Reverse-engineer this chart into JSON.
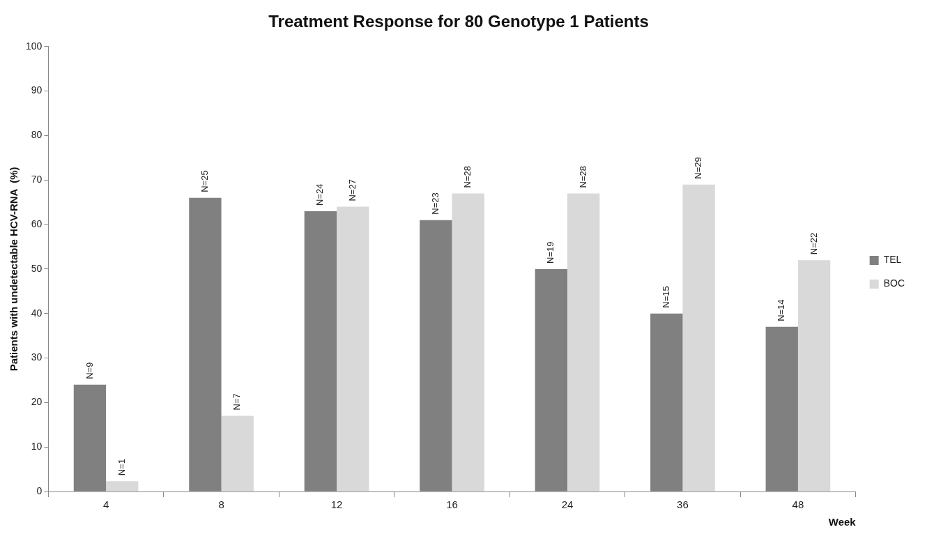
{
  "chart_data": {
    "type": "bar",
    "title": "Treatment Response for 80 Genotype 1 Patients",
    "xlabel": "Week",
    "ylabel": "Patients with undetectable HCV-RNA  (%)",
    "categories": [
      "4",
      "8",
      "12",
      "16",
      "24",
      "36",
      "48"
    ],
    "series": [
      {
        "name": "TEL",
        "color": "#808080",
        "values": [
          24,
          66,
          63,
          61,
          50,
          40,
          37
        ]
      },
      {
        "name": "BOC",
        "color": "#d9d9d9",
        "values": [
          2.3,
          17,
          64,
          67,
          67,
          69,
          52
        ]
      }
    ],
    "annotations": [
      {
        "text": "N=9",
        "x": "4",
        "y": 24
      },
      {
        "text": "N=1",
        "x": "4",
        "y": 2.3
      },
      {
        "text": "N=25",
        "x": "8",
        "y": 66
      },
      {
        "text": "N=7",
        "x": "8",
        "y": 17
      },
      {
        "text": "N=24",
        "x": "12",
        "y": 63
      },
      {
        "text": "N=27",
        "x": "12",
        "y": 64
      },
      {
        "text": "N=23",
        "x": "16",
        "y": 61
      },
      {
        "text": "N=28",
        "x": "16",
        "y": 67
      },
      {
        "text": "N=19",
        "x": "24",
        "y": 50
      },
      {
        "text": "N=28",
        "x": "24",
        "y": 67
      },
      {
        "text": "N=15",
        "x": "36",
        "y": 40
      },
      {
        "text": "N=29",
        "x": "36",
        "y": 69
      },
      {
        "text": "N=14",
        "x": "48",
        "y": 37
      },
      {
        "text": "N=22",
        "x": "48",
        "y": 52
      }
    ],
    "ylim": [
      0,
      100
    ],
    "yticks": [
      0,
      10,
      20,
      30,
      40,
      50,
      60,
      70,
      80,
      90,
      100
    ],
    "legend": "right"
  }
}
